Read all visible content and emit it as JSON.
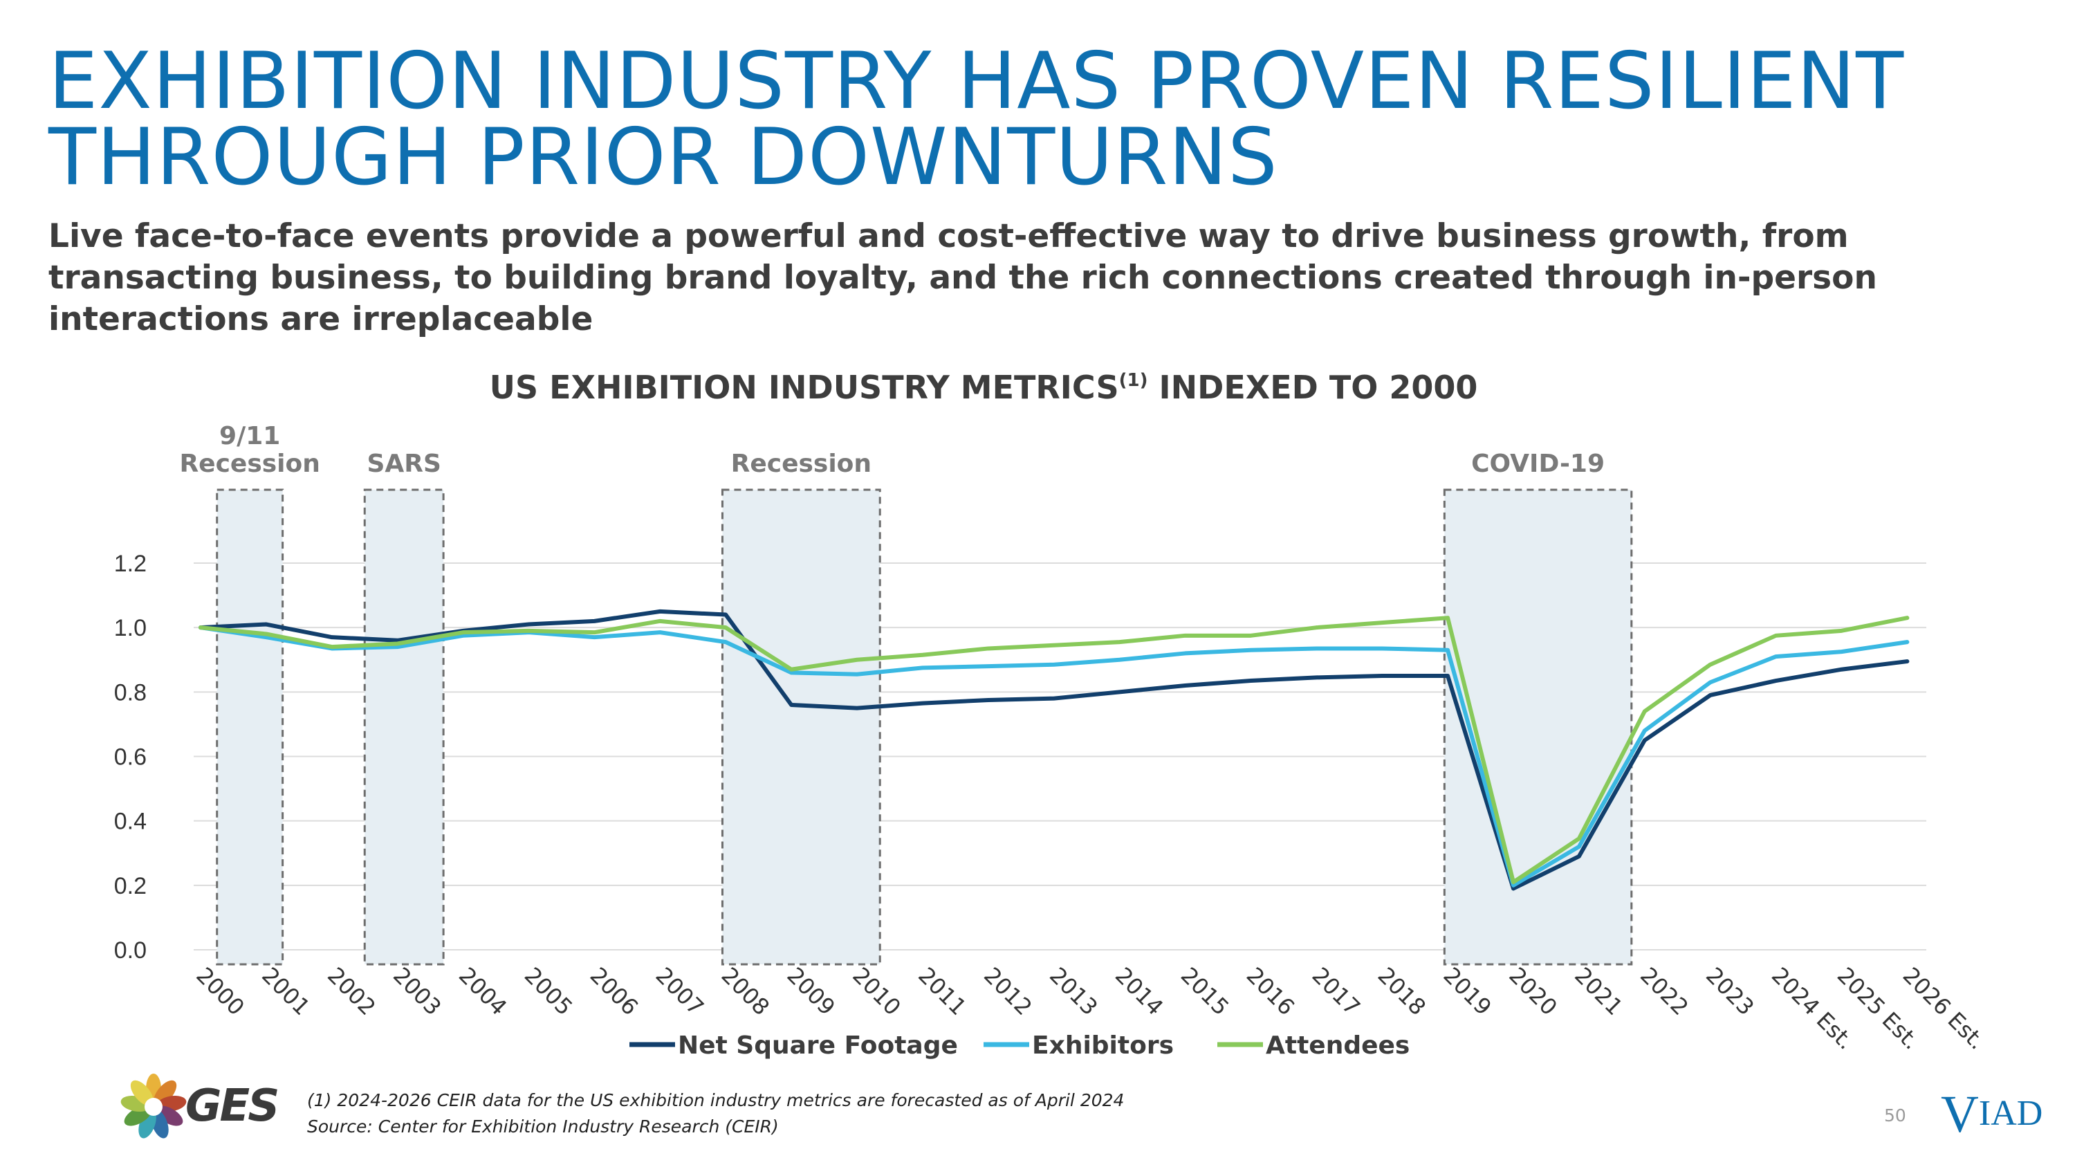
{
  "title": {
    "line1": "EXHIBITION INDUSTRY HAS PROVEN RESILIENT",
    "line2": "THROUGH PRIOR DOWNTURNS"
  },
  "subtitle": {
    "line1": "Live face-to-face events provide a powerful and cost-effective way to drive business growth, from",
    "line2": "transacting business, to building brand loyalty, and the rich connections created through in-person",
    "line3": "interactions are irreplaceable"
  },
  "chart_data": {
    "type": "line",
    "title": "US EXHIBITION INDUSTRY METRICS",
    "title_superscript": "(1)",
    "title_suffix": " INDEXED TO 2000",
    "x": [
      "2000",
      "2001",
      "2002",
      "2003",
      "2004",
      "2005",
      "2006",
      "2007",
      "2008",
      "2009",
      "2010",
      "2011",
      "2012",
      "2013",
      "2014",
      "2015",
      "2016",
      "2017",
      "2018",
      "2019",
      "2020",
      "2021",
      "2022",
      "2023",
      "2024 Est.",
      "2025 Est.",
      "2026 Est."
    ],
    "yticks": [
      "0.0",
      "0.2",
      "0.4",
      "0.6",
      "0.8",
      "1.0",
      "1.2"
    ],
    "ylim": [
      0,
      1.2
    ],
    "grid": true,
    "legend_position": "bottom",
    "series": [
      {
        "name": "Net Square Footage",
        "color": "#123f6c",
        "values": [
          1.0,
          1.01,
          0.97,
          0.96,
          0.99,
          1.01,
          1.02,
          1.05,
          1.04,
          0.76,
          0.75,
          0.765,
          0.775,
          0.78,
          0.8,
          0.82,
          0.835,
          0.845,
          0.85,
          0.85,
          0.19,
          0.29,
          0.65,
          0.79,
          0.835,
          0.87,
          0.895
        ]
      },
      {
        "name": "Exhibitors",
        "color": "#3ab8e2",
        "values": [
          1.0,
          0.97,
          0.935,
          0.94,
          0.975,
          0.985,
          0.97,
          0.985,
          0.955,
          0.86,
          0.855,
          0.875,
          0.88,
          0.885,
          0.9,
          0.92,
          0.93,
          0.935,
          0.935,
          0.93,
          0.2,
          0.32,
          0.68,
          0.83,
          0.91,
          0.925,
          0.955
        ]
      },
      {
        "name": "Attendees",
        "color": "#88c95a",
        "values": [
          1.0,
          0.98,
          0.94,
          0.95,
          0.985,
          0.99,
          0.985,
          1.02,
          1.0,
          0.87,
          0.9,
          0.915,
          0.935,
          0.945,
          0.955,
          0.975,
          0.975,
          1.0,
          1.015,
          1.03,
          0.21,
          0.345,
          0.74,
          0.885,
          0.975,
          0.99,
          1.03
        ]
      }
    ],
    "shaded_periods": [
      {
        "label_line1": "9/11",
        "label_line2": "Recession",
        "start": 0.25,
        "end": 1.25
      },
      {
        "label_line1": "",
        "label_line2": "SARS",
        "start": 2.5,
        "end": 3.7
      },
      {
        "label_line1": "",
        "label_line2": "Recession",
        "start": 7.95,
        "end": 10.35
      },
      {
        "label_line1": "",
        "label_line2": "COVID-19",
        "start": 18.95,
        "end": 21.8
      }
    ]
  },
  "footnotes": {
    "note1": "(1) 2024-2026 CEIR data for the US exhibition industry metrics are forecasted as of April 2024",
    "source": "Source: Center for Exhibition Industry Research (CEIR)"
  },
  "page_number": "50",
  "logos": {
    "ges": "GES",
    "viad_v": "V",
    "viad_rest": "IAD"
  }
}
